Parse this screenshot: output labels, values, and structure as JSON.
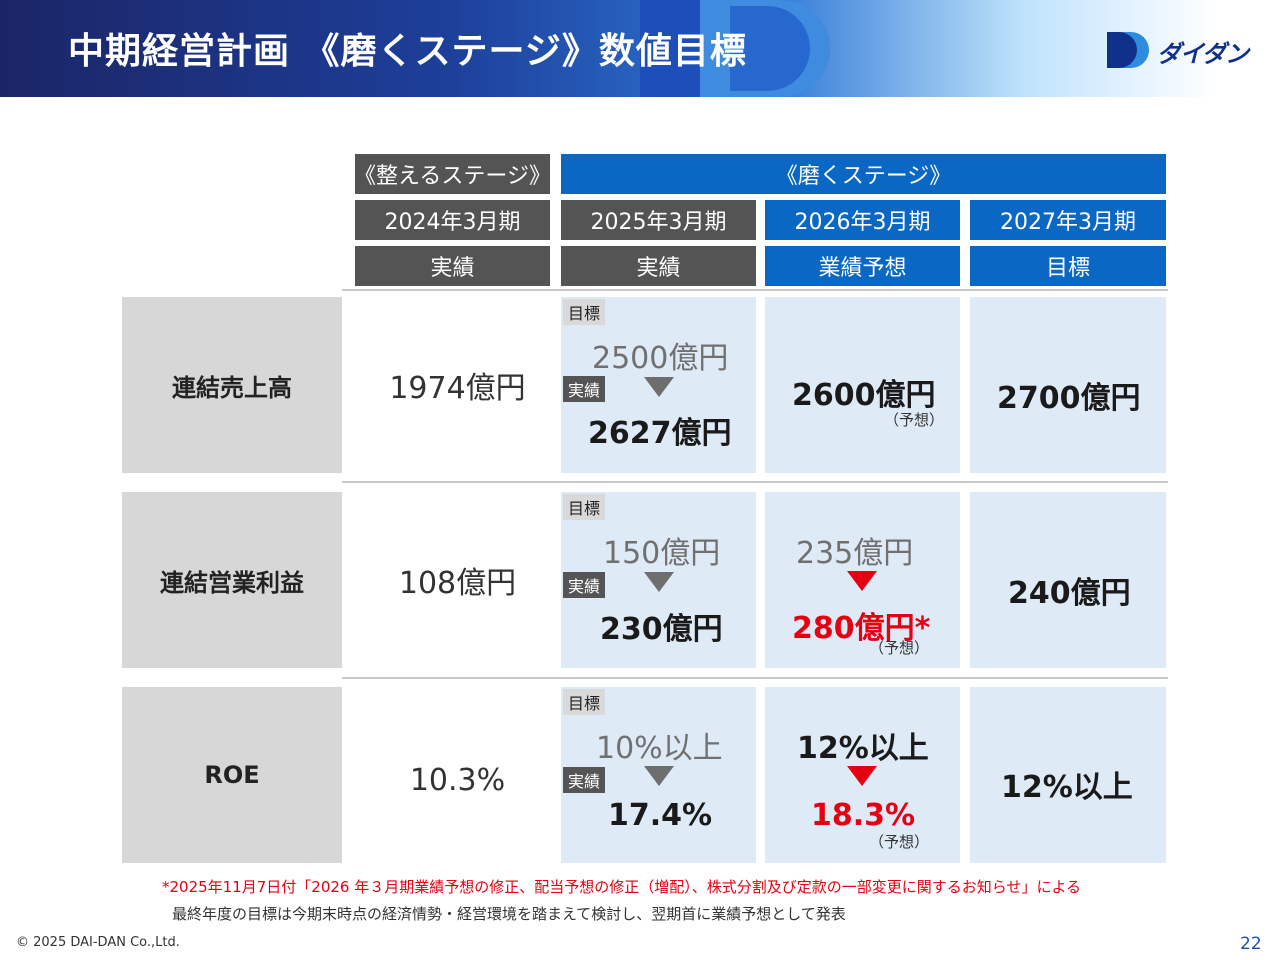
{
  "header": {
    "title": "中期経営計画 《磨くステージ》数値目標"
  },
  "logo": {
    "text": "ダイダン"
  },
  "stages": {
    "prepare": "《整えるステージ》",
    "polish": "《磨くステージ》"
  },
  "columns": [
    {
      "period": "2024年3月期",
      "type": "実績"
    },
    {
      "period": "2025年3月期",
      "type": "実績"
    },
    {
      "period": "2026年3月期",
      "type": "業績予想"
    },
    {
      "period": "2027年3月期",
      "type": "目標"
    }
  ],
  "tags": {
    "target": "目標",
    "actual": "実績"
  },
  "rows": [
    {
      "label": "連結売上高",
      "fy2024": "1974億円",
      "fy2025_target": "2500億円",
      "fy2025_actual": "2627億円",
      "fy2026_value": "2600億円",
      "fy2026_note": "（予想）",
      "fy2027": "2700億円"
    },
    {
      "label": "連結営業利益",
      "fy2024": "108億円",
      "fy2025_target": "150億円",
      "fy2025_actual": "230億円",
      "fy2026_prev": "235億円",
      "fy2026_value": "280億円*",
      "fy2026_note": "（予想）",
      "fy2027": "240億円"
    },
    {
      "label": "ROE",
      "fy2024": "10.3%",
      "fy2025_target": "10%以上",
      "fy2025_actual": "17.4%",
      "fy2026_prev": "12%以上",
      "fy2026_value": "18.3%",
      "fy2026_note": "（予想）",
      "fy2027": "12%以上"
    }
  ],
  "notes": {
    "line1": "*2025年11月7日付「2026 年３月期業績予想の修正、配当予想の修正（増配）、株式分割及び定款の一部変更に関するお知らせ」による",
    "line2": "最終年度の目標は今期末時点の経済情勢・経営環境を踏まえて検討し、翌期首に業績予想として発表"
  },
  "footer": {
    "copyright": "© 2025 DAI-DAN Co.,Ltd.",
    "page": "22"
  },
  "colors": {
    "navy": "#1b2566",
    "blue": "#0a68c4",
    "red": "#e50012",
    "cell_bg": "#dfeaf7"
  }
}
